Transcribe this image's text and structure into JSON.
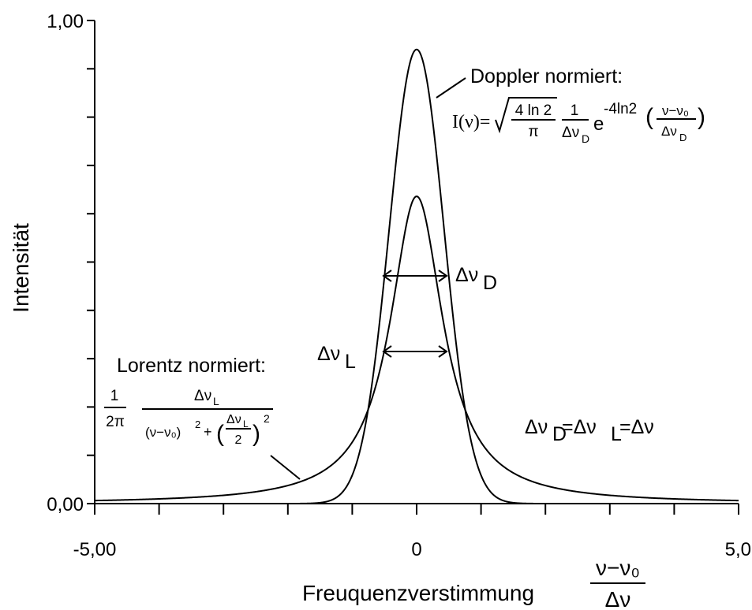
{
  "chart_data": {
    "type": "line",
    "title": "",
    "xlabel": "Freuquenzverstimmung",
    "xlabel_fraction": {
      "numerator": "ν−ν₀",
      "denominator": "Δν"
    },
    "ylabel": "Intensität",
    "xlim": [
      -5,
      5
    ],
    "ylim": [
      0,
      1
    ],
    "x_ticks": [
      -5,
      -4,
      -3,
      -2,
      -1,
      0,
      1,
      2,
      3,
      4,
      5
    ],
    "y_ticks": [
      0,
      0.1,
      0.2,
      0.3,
      0.4,
      0.5,
      0.6,
      0.7,
      0.8,
      0.9,
      1.0
    ],
    "x_tick_labels": [
      {
        "value": -5,
        "label": "-5,00"
      },
      {
        "value": 0,
        "label": "0"
      },
      {
        "value": 5,
        "label": "5,0"
      }
    ],
    "y_tick_labels": [
      {
        "value": 0,
        "label": "0,00"
      },
      {
        "value": 1,
        "label": "1,00"
      }
    ],
    "series": [
      {
        "curve": "doppler",
        "x": [
          -2.0,
          -1.8,
          -1.6,
          -1.4,
          -1.2,
          -1.0,
          -0.8,
          -0.6,
          -0.4,
          -0.2,
          0.0,
          0.2,
          0.4,
          0.6,
          0.8,
          1.0,
          1.2,
          1.4,
          1.6,
          1.8,
          2.0
        ],
        "y": [
          0.0,
          0.0,
          0.001,
          0.004,
          0.017,
          0.059,
          0.155,
          0.34,
          0.58,
          0.83,
          0.94,
          0.83,
          0.58,
          0.34,
          0.155,
          0.059,
          0.017,
          0.004,
          0.001,
          0.0,
          0.0
        ]
      },
      {
        "curve": "lorentz",
        "x": [
          -5.0,
          -4.0,
          -3.0,
          -2.0,
          -1.5,
          -1.0,
          -0.8,
          -0.6,
          -0.4,
          -0.2,
          0.0,
          0.2,
          0.4,
          0.6,
          0.8,
          1.0,
          1.5,
          2.0,
          3.0,
          4.0,
          5.0
        ],
        "y": [
          0.006,
          0.01,
          0.018,
          0.038,
          0.064,
          0.127,
          0.178,
          0.251,
          0.388,
          0.536,
          0.636,
          0.536,
          0.388,
          0.251,
          0.178,
          0.127,
          0.064,
          0.038,
          0.018,
          0.01,
          0.006
        ]
      }
    ],
    "legend": "none",
    "grid": false
  },
  "annotations": {
    "doppler_title": "Doppler normiert:",
    "doppler_formula": {
      "lhs": "I(ν)=",
      "sqrt_num": "4 ln 2",
      "sqrt_den": "π",
      "frac_num": "1",
      "frac_den": "Δν",
      "frac_den_sub": "D",
      "exp_base": "e",
      "exp_text": "-4ln2",
      "paren_num": "ν−ν₀",
      "paren_den": "Δν",
      "paren_den_sub": "D"
    },
    "lorentz_title": "Lorentz normiert:",
    "lorentz_formula": {
      "pre_num": "1",
      "pre_den": "2π",
      "num": "Δν",
      "num_sub": "L",
      "den_left": "(ν−ν₀)",
      "den_exp": "2",
      "den_plus": "+",
      "den_paren_num": "Δν",
      "den_paren_num_sub": "L",
      "den_paren_den": "2"
    },
    "delta_nu_D": "Δν",
    "delta_nu_D_sub": "D",
    "delta_nu_L": "Δν",
    "delta_nu_L_sub": "L",
    "equality": {
      "p1": "Δν",
      "s1": "D",
      "p2": "=Δν",
      "s2": "L",
      "p3": "=Δν"
    }
  },
  "colors": {
    "line": "#000000",
    "background": "#ffffff"
  }
}
